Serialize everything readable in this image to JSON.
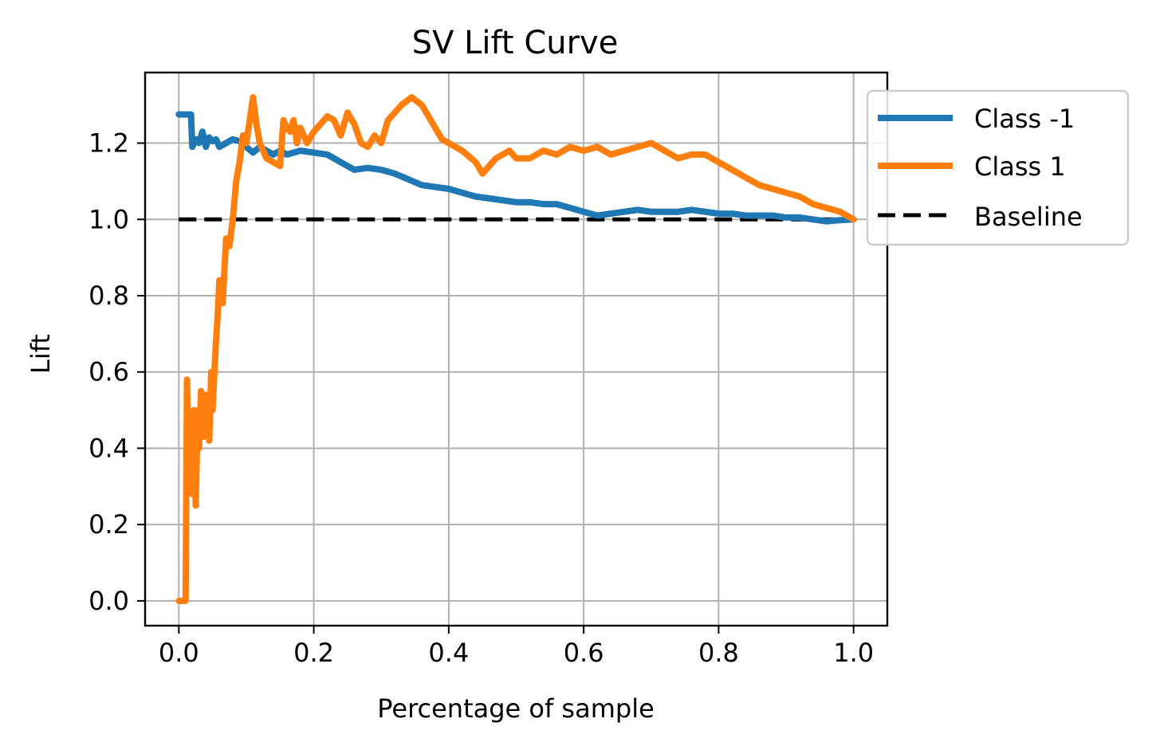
{
  "chart_data": {
    "type": "line",
    "title": "SV Lift Curve",
    "xlabel": "Percentage of sample",
    "ylabel": "Lift",
    "xlim": [
      -0.05,
      1.05
    ],
    "ylim": [
      -0.065,
      1.385
    ],
    "grid": true,
    "legend_position": "upper-right, outside plot",
    "x_ticks": [
      0.0,
      0.2,
      0.4,
      0.6,
      0.8,
      1.0
    ],
    "x_tick_labels": [
      "0.0",
      "0.2",
      "0.4",
      "0.6",
      "0.8",
      "1.0"
    ],
    "y_ticks": [
      0.0,
      0.2,
      0.4,
      0.6,
      0.8,
      1.0,
      1.2
    ],
    "y_tick_labels": [
      "0.0",
      "0.2",
      "0.4",
      "0.6",
      "0.8",
      "1.0",
      "1.2"
    ],
    "series": [
      {
        "name": "Class -1",
        "color": "#1f77b4",
        "style": "solid",
        "points": [
          [
            0.0,
            1.275
          ],
          [
            0.018,
            1.275
          ],
          [
            0.02,
            1.19
          ],
          [
            0.025,
            1.21
          ],
          [
            0.03,
            1.2
          ],
          [
            0.035,
            1.23
          ],
          [
            0.04,
            1.19
          ],
          [
            0.045,
            1.215
          ],
          [
            0.05,
            1.205
          ],
          [
            0.055,
            1.21
          ],
          [
            0.06,
            1.19
          ],
          [
            0.07,
            1.2
          ],
          [
            0.08,
            1.21
          ],
          [
            0.09,
            1.205
          ],
          [
            0.1,
            1.19
          ],
          [
            0.11,
            1.175
          ],
          [
            0.12,
            1.19
          ],
          [
            0.13,
            1.18
          ],
          [
            0.14,
            1.17
          ],
          [
            0.15,
            1.18
          ],
          [
            0.16,
            1.17
          ],
          [
            0.18,
            1.18
          ],
          [
            0.2,
            1.175
          ],
          [
            0.22,
            1.17
          ],
          [
            0.24,
            1.15
          ],
          [
            0.26,
            1.13
          ],
          [
            0.28,
            1.135
          ],
          [
            0.3,
            1.13
          ],
          [
            0.32,
            1.12
          ],
          [
            0.34,
            1.105
          ],
          [
            0.36,
            1.09
          ],
          [
            0.38,
            1.085
          ],
          [
            0.4,
            1.08
          ],
          [
            0.42,
            1.07
          ],
          [
            0.44,
            1.06
          ],
          [
            0.46,
            1.055
          ],
          [
            0.48,
            1.05
          ],
          [
            0.5,
            1.045
          ],
          [
            0.52,
            1.045
          ],
          [
            0.54,
            1.04
          ],
          [
            0.56,
            1.04
          ],
          [
            0.58,
            1.03
          ],
          [
            0.6,
            1.02
          ],
          [
            0.62,
            1.01
          ],
          [
            0.64,
            1.015
          ],
          [
            0.66,
            1.02
          ],
          [
            0.68,
            1.025
          ],
          [
            0.7,
            1.02
          ],
          [
            0.72,
            1.02
          ],
          [
            0.74,
            1.02
          ],
          [
            0.76,
            1.025
          ],
          [
            0.78,
            1.02
          ],
          [
            0.8,
            1.015
          ],
          [
            0.82,
            1.015
          ],
          [
            0.84,
            1.01
          ],
          [
            0.86,
            1.01
          ],
          [
            0.88,
            1.01
          ],
          [
            0.9,
            1.005
          ],
          [
            0.92,
            1.005
          ],
          [
            0.94,
            1.0
          ],
          [
            0.96,
            0.995
          ],
          [
            0.98,
            0.998
          ],
          [
            1.0,
            1.0
          ]
        ]
      },
      {
        "name": "Class 1",
        "color": "#ff7f0e",
        "style": "solid",
        "points": [
          [
            0.0,
            0.0
          ],
          [
            0.005,
            0.0
          ],
          [
            0.01,
            0.0
          ],
          [
            0.012,
            0.58
          ],
          [
            0.015,
            0.3
          ],
          [
            0.018,
            0.47
          ],
          [
            0.02,
            0.28
          ],
          [
            0.022,
            0.5
          ],
          [
            0.025,
            0.25
          ],
          [
            0.028,
            0.5
          ],
          [
            0.03,
            0.4
          ],
          [
            0.033,
            0.55
          ],
          [
            0.036,
            0.43
          ],
          [
            0.04,
            0.54
          ],
          [
            0.045,
            0.42
          ],
          [
            0.048,
            0.6
          ],
          [
            0.05,
            0.5
          ],
          [
            0.055,
            0.68
          ],
          [
            0.058,
            0.76
          ],
          [
            0.06,
            0.84
          ],
          [
            0.065,
            0.78
          ],
          [
            0.07,
            0.95
          ],
          [
            0.075,
            0.93
          ],
          [
            0.08,
            1.0
          ],
          [
            0.085,
            1.1
          ],
          [
            0.09,
            1.15
          ],
          [
            0.095,
            1.22
          ],
          [
            0.1,
            1.2
          ],
          [
            0.105,
            1.26
          ],
          [
            0.11,
            1.32
          ],
          [
            0.115,
            1.25
          ],
          [
            0.12,
            1.2
          ],
          [
            0.125,
            1.18
          ],
          [
            0.13,
            1.16
          ],
          [
            0.14,
            1.15
          ],
          [
            0.15,
            1.14
          ],
          [
            0.155,
            1.26
          ],
          [
            0.16,
            1.24
          ],
          [
            0.165,
            1.23
          ],
          [
            0.17,
            1.26
          ],
          [
            0.175,
            1.2
          ],
          [
            0.18,
            1.24
          ],
          [
            0.19,
            1.2
          ],
          [
            0.2,
            1.23
          ],
          [
            0.21,
            1.25
          ],
          [
            0.22,
            1.27
          ],
          [
            0.23,
            1.26
          ],
          [
            0.24,
            1.22
          ],
          [
            0.25,
            1.28
          ],
          [
            0.26,
            1.25
          ],
          [
            0.27,
            1.2
          ],
          [
            0.28,
            1.19
          ],
          [
            0.29,
            1.22
          ],
          [
            0.3,
            1.2
          ],
          [
            0.31,
            1.26
          ],
          [
            0.32,
            1.28
          ],
          [
            0.33,
            1.3
          ],
          [
            0.345,
            1.32
          ],
          [
            0.36,
            1.3
          ],
          [
            0.37,
            1.27
          ],
          [
            0.38,
            1.24
          ],
          [
            0.39,
            1.21
          ],
          [
            0.4,
            1.2
          ],
          [
            0.42,
            1.18
          ],
          [
            0.44,
            1.15
          ],
          [
            0.45,
            1.12
          ],
          [
            0.46,
            1.14
          ],
          [
            0.47,
            1.16
          ],
          [
            0.48,
            1.17
          ],
          [
            0.49,
            1.18
          ],
          [
            0.5,
            1.16
          ],
          [
            0.52,
            1.16
          ],
          [
            0.54,
            1.18
          ],
          [
            0.56,
            1.17
          ],
          [
            0.58,
            1.19
          ],
          [
            0.6,
            1.18
          ],
          [
            0.62,
            1.19
          ],
          [
            0.64,
            1.17
          ],
          [
            0.66,
            1.18
          ],
          [
            0.68,
            1.19
          ],
          [
            0.7,
            1.2
          ],
          [
            0.72,
            1.18
          ],
          [
            0.74,
            1.16
          ],
          [
            0.76,
            1.17
          ],
          [
            0.78,
            1.17
          ],
          [
            0.8,
            1.15
          ],
          [
            0.82,
            1.13
          ],
          [
            0.84,
            1.11
          ],
          [
            0.86,
            1.09
          ],
          [
            0.88,
            1.08
          ],
          [
            0.9,
            1.07
          ],
          [
            0.92,
            1.06
          ],
          [
            0.94,
            1.04
          ],
          [
            0.96,
            1.03
          ],
          [
            0.98,
            1.02
          ],
          [
            1.0,
            1.0
          ]
        ]
      },
      {
        "name": "Baseline",
        "color": "#000000",
        "style": "dashed",
        "points": [
          [
            0.0,
            1.0
          ],
          [
            1.0,
            1.0
          ]
        ]
      }
    ]
  }
}
